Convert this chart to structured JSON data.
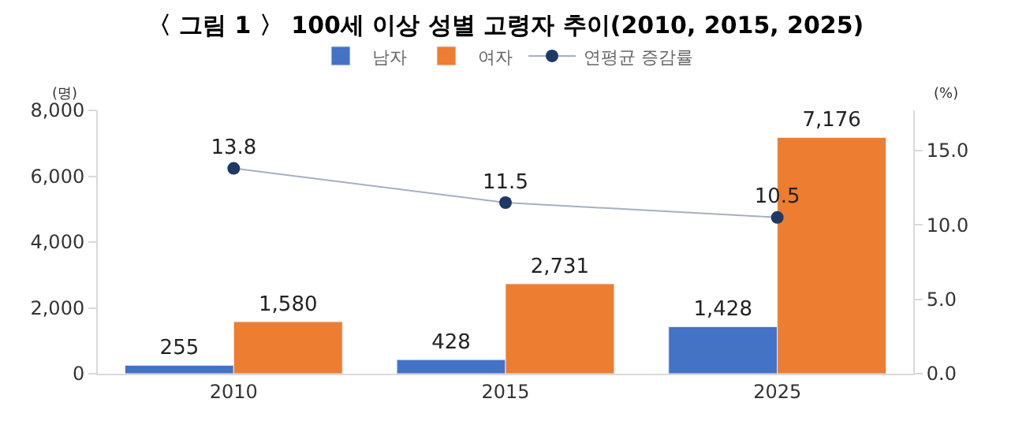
{
  "chart_data": {
    "type": "bar",
    "title": "〈 그림 1 〉 100세 이상 성별 고령자 추이(2010, 2015, 2025)",
    "ylabel": "(명)",
    "y2label": "(%)",
    "categories": [
      "2010",
      "2015",
      "2025"
    ],
    "series": [
      {
        "name": "남자",
        "color": "#4472c4",
        "values": [
          255,
          428,
          1428
        ],
        "value_labels": [
          "255",
          "428",
          "1,428"
        ]
      },
      {
        "name": "여자",
        "color": "#ed7d31",
        "values": [
          1580,
          2731,
          7176
        ],
        "value_labels": [
          "1,580",
          "2,731",
          "7,176"
        ]
      },
      {
        "name": "연평균 증감률",
        "type": "line",
        "axis": "y2",
        "color": "#1f3864",
        "marker": "circle",
        "values": [
          13.8,
          11.5,
          10.5
        ],
        "value_labels": [
          "13.8",
          "11.5",
          "10.5"
        ]
      }
    ],
    "ylim": [
      0,
      8000
    ],
    "yticks": [
      {
        "value": 0,
        "label": "0"
      },
      {
        "value": 2000,
        "label": "2,000"
      },
      {
        "value": 4000,
        "label": "4,000"
      },
      {
        "value": 6000,
        "label": "6,000"
      },
      {
        "value": 8000,
        "label": "8,000"
      }
    ],
    "y2lim": [
      0,
      17.7
    ],
    "y2ticks": [
      {
        "value": 0,
        "label": "0.0"
      },
      {
        "value": 5,
        "label": "5.0"
      },
      {
        "value": 10,
        "label": "10.0"
      },
      {
        "value": 15,
        "label": "15.0"
      }
    ],
    "legend": "top"
  }
}
